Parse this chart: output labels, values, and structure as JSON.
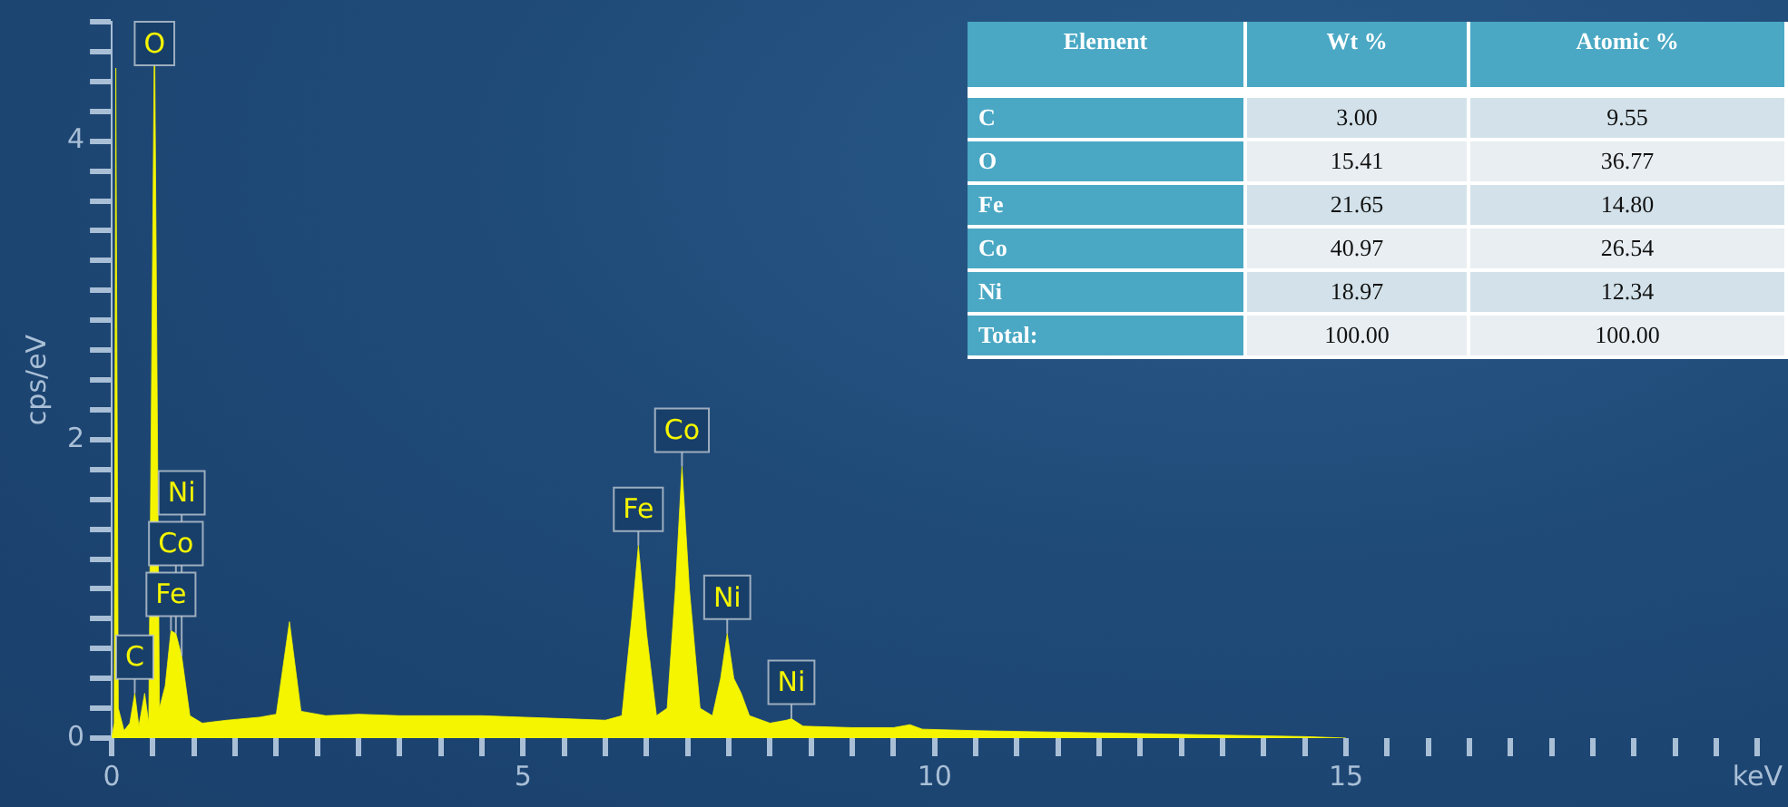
{
  "chart_data": [
    {
      "type": "area",
      "ylabel": "cps/eV",
      "color": "#f5f500",
      "marker": "none",
      "grid": false,
      "legend": false,
      "x": [
        0,
        0.03,
        0.05,
        0.08,
        0.15,
        0.22,
        0.28,
        0.33,
        0.4,
        0.45,
        0.52,
        0.58,
        0.65,
        0.72,
        0.78,
        0.85,
        0.95,
        1.1,
        1.4,
        1.8,
        2.0,
        2.16,
        2.3,
        2.6,
        3.0,
        3.5,
        4.0,
        4.5,
        5.0,
        5.5,
        6.0,
        6.2,
        6.32,
        6.4,
        6.5,
        6.62,
        6.75,
        6.85,
        6.93,
        7.02,
        7.15,
        7.3,
        7.4,
        7.48,
        7.56,
        7.65,
        7.75,
        8.0,
        8.2,
        8.26,
        8.4,
        9.0,
        9.5,
        9.7,
        9.85,
        10.5,
        11.5,
        12.5,
        13.5,
        14.5,
        15
      ],
      "values": [
        0,
        0.1,
        4.49,
        0.2,
        0.05,
        0.1,
        0.3,
        0.08,
        0.3,
        0.1,
        4.8,
        0.2,
        0.35,
        0.72,
        0.7,
        0.55,
        0.15,
        0.1,
        0.12,
        0.14,
        0.16,
        0.78,
        0.18,
        0.15,
        0.16,
        0.15,
        0.15,
        0.15,
        0.14,
        0.13,
        0.12,
        0.15,
        0.8,
        1.29,
        0.7,
        0.15,
        0.2,
        1.0,
        1.82,
        1.0,
        0.2,
        0.15,
        0.4,
        0.7,
        0.4,
        0.3,
        0.15,
        0.1,
        0.12,
        0.13,
        0.08,
        0.07,
        0.07,
        0.09,
        0.06,
        0.05,
        0.04,
        0.03,
        0.02,
        0.01,
        0
      ],
      "xlim": [
        0,
        20
      ],
      "xticks": [
        0,
        {
          "value": 0.5,
          "label": null
        },
        {
          "value": 1,
          "label": null
        },
        {
          "value": 1.5,
          "label": null
        },
        {
          "value": 2,
          "label": null
        },
        {
          "value": 2.5,
          "label": null
        },
        {
          "value": 3,
          "label": null
        },
        {
          "value": 3.5,
          "label": null
        },
        {
          "value": 4,
          "label": null
        },
        {
          "value": 4.5,
          "label": null
        },
        5,
        {
          "value": 5.5,
          "label": null
        },
        {
          "value": 6,
          "label": null
        },
        {
          "value": 6.5,
          "label": null
        },
        {
          "value": 7,
          "label": null
        },
        {
          "value": 7.5,
          "label": null
        },
        {
          "value": 8,
          "label": null
        },
        {
          "value": 8.5,
          "label": null
        },
        {
          "value": 9,
          "label": null
        },
        {
          "value": 9.5,
          "label": null
        },
        10,
        {
          "value": 10.5,
          "label": null
        },
        {
          "value": 11,
          "label": null
        },
        {
          "value": 11.5,
          "label": null
        },
        {
          "value": 12,
          "label": null
        },
        {
          "value": 12.5,
          "label": null
        },
        {
          "value": 13,
          "label": null
        },
        {
          "value": 13.5,
          "label": null
        },
        {
          "value": 14,
          "label": null
        },
        {
          "value": 14.5,
          "label": null
        },
        15,
        {
          "value": 15.5,
          "label": null
        },
        {
          "value": 16,
          "label": null
        },
        {
          "value": 16.5,
          "label": null
        },
        {
          "value": 17,
          "label": null
        },
        {
          "value": 17.5,
          "label": null
        },
        {
          "value": 18,
          "label": null
        },
        {
          "value": 18.5,
          "label": null
        },
        {
          "value": 19,
          "label": null
        },
        {
          "value": 19.5,
          "label": null
        },
        {
          "value": 20,
          "label": "keV"
        }
      ],
      "ylim": [
        0,
        4.8
      ],
      "yticks": [
        0,
        {
          "value": 0.2,
          "label": null
        },
        {
          "value": 0.4,
          "label": null
        },
        {
          "value": 0.6,
          "label": null
        },
        {
          "value": 0.8,
          "label": null
        },
        {
          "value": 1,
          "label": null
        },
        {
          "value": 1.2,
          "label": null
        },
        {
          "value": 1.4,
          "label": null
        },
        {
          "value": 1.6,
          "label": null
        },
        {
          "value": 1.8,
          "label": null
        },
        2,
        {
          "value": 2.2,
          "label": null
        },
        {
          "value": 2.4,
          "label": null
        },
        {
          "value": 2.6,
          "label": null
        },
        {
          "value": 2.8,
          "label": null
        },
        {
          "value": 3,
          "label": null
        },
        {
          "value": 3.2,
          "label": null
        },
        {
          "value": 3.4,
          "label": null
        },
        {
          "value": 3.6,
          "label": null
        },
        {
          "value": 3.8,
          "label": null
        },
        4,
        {
          "value": 4.2,
          "label": null
        },
        {
          "value": 4.4,
          "label": null
        },
        {
          "value": 4.6,
          "label": null
        },
        {
          "value": 4.8,
          "label": null
        }
      ],
      "annotations": [
        {
          "text": "C",
          "x": 0.28,
          "y": 0.3
        },
        {
          "text": "O",
          "x": 0.52,
          "y": 4.8
        },
        {
          "text": "Fe",
          "x": 0.72,
          "y": 0.72
        },
        {
          "text": "Co",
          "x": 0.78,
          "y": 0.7
        },
        {
          "text": "Ni",
          "x": 0.85,
          "y": 0.55
        },
        {
          "text": "Fe",
          "x": 6.4,
          "y": 1.29
        },
        {
          "text": "Co",
          "x": 6.93,
          "y": 1.82
        },
        {
          "text": "Ni",
          "x": 7.48,
          "y": 0.7
        },
        {
          "text": "Ni",
          "x": 8.26,
          "y": 0.13
        }
      ]
    },
    {
      "type": "other",
      "annotations": [
        "Element",
        "Wt %",
        "Atomic %",
        "C",
        "3.00",
        "9.55",
        "O",
        "15.41",
        "36.77",
        "Fe",
        "21.65",
        "14.80",
        "Co",
        "40.97",
        "26.54",
        "Ni",
        "18.97",
        "12.34",
        "Total:",
        "100.00",
        "100.00"
      ]
    }
  ]
}
